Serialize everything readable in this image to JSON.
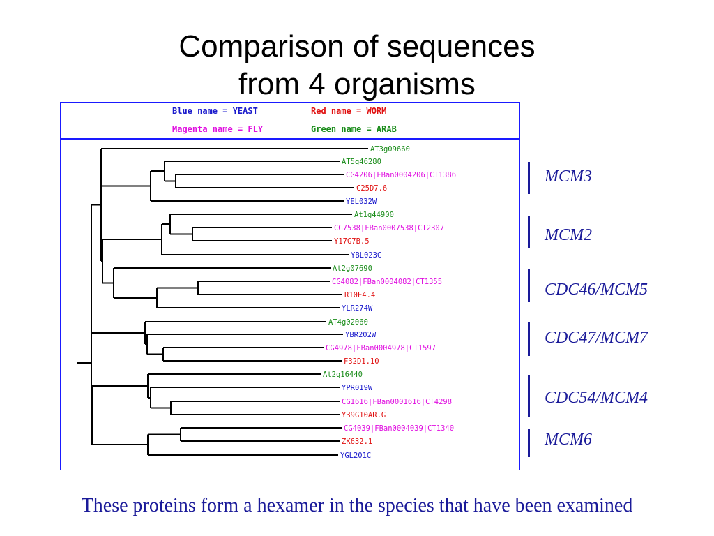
{
  "title_line1": "Comparison of sequences",
  "title_line2": "from 4 organisms",
  "legend": {
    "blue": "Blue name = YEAST",
    "red": "Red name = WORM",
    "magenta": "Magenta name = FLY",
    "green": "Green name = ARAB"
  },
  "colors": {
    "yeast": "#1a1acc",
    "worm": "#e01010",
    "fly": "#e010e0",
    "arab": "#1a8c1a",
    "accent": "#1a1a99"
  },
  "leaves": [
    {
      "name": "AT3g09660",
      "organism": "arab"
    },
    {
      "name": "AT5g46280",
      "organism": "arab"
    },
    {
      "name": "CG4206|FBan0004206|CT1386",
      "organism": "fly"
    },
    {
      "name": "C25D7.6",
      "organism": "worm"
    },
    {
      "name": "YEL032W",
      "organism": "yeast"
    },
    {
      "name": "At1g44900",
      "organism": "arab"
    },
    {
      "name": "CG7538|FBan0007538|CT2307",
      "organism": "fly"
    },
    {
      "name": "Y17G7B.5",
      "organism": "worm"
    },
    {
      "name": "YBL023C",
      "organism": "yeast"
    },
    {
      "name": "At2g07690",
      "organism": "arab"
    },
    {
      "name": "CG4082|FBan0004082|CT1355",
      "organism": "fly"
    },
    {
      "name": "R10E4.4",
      "organism": "worm"
    },
    {
      "name": "YLR274W",
      "organism": "yeast"
    },
    {
      "name": "AT4g02060",
      "organism": "arab"
    },
    {
      "name": "YBR202W",
      "organism": "yeast"
    },
    {
      "name": "CG4978|FBan0004978|CT1597",
      "organism": "fly"
    },
    {
      "name": "F32D1.10",
      "organism": "worm"
    },
    {
      "name": "At2g16440",
      "organism": "arab"
    },
    {
      "name": "YPR019W",
      "organism": "yeast"
    },
    {
      "name": "CG1616|FBan0001616|CT4298",
      "organism": "fly"
    },
    {
      "name": "Y39G10AR.G",
      "organism": "worm"
    },
    {
      "name": "CG4039|FBan0004039|CT1340",
      "organism": "fly"
    },
    {
      "name": "ZK632.1",
      "organism": "worm"
    },
    {
      "name": "YGL201C",
      "organism": "yeast"
    }
  ],
  "groups": [
    {
      "label": "MCM3",
      "first_leaf": 0,
      "last_leaf": 4
    },
    {
      "label": "MCM2",
      "first_leaf": 5,
      "last_leaf": 8
    },
    {
      "label": "CDC46/MCM5",
      "first_leaf": 9,
      "last_leaf": 12
    },
    {
      "label": "CDC47/MCM7",
      "first_leaf": 13,
      "last_leaf": 16
    },
    {
      "label": "CDC54/MCM4",
      "first_leaf": 17,
      "last_leaf": 20
    },
    {
      "label": "MCM6",
      "first_leaf": 21,
      "last_leaf": 23
    }
  ],
  "caption": "These proteins form a hexamer in the species that have been examined"
}
